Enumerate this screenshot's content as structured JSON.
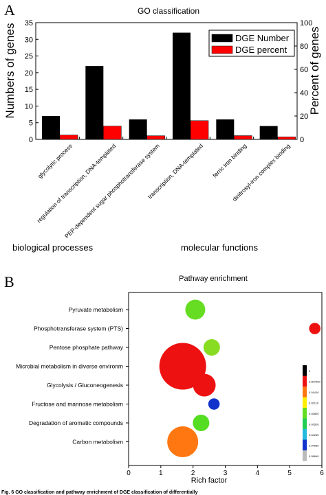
{
  "panel_labels": {
    "a": "A",
    "b": "B"
  },
  "chart_data": [
    {
      "type": "bar",
      "title": "GO classification",
      "ylabel": "Numbers of genes",
      "ylabel_right": "Percent of genes",
      "ylim": [
        0,
        35
      ],
      "ylim_right": [
        0,
        100
      ],
      "yticks": [
        "0",
        "5",
        "10",
        "15",
        "20",
        "25",
        "30",
        "35"
      ],
      "yticks_right": [
        "0",
        "20",
        "40",
        "60",
        "80",
        "100"
      ],
      "categories": [
        "glycolytic process",
        "regulation of transcription, DNA-templated",
        "PEP-dependent sugar phosphotransferase system",
        "transcription, DNA-templated",
        "ferric iron binding",
        "dinitrosyl-iron complex binding"
      ],
      "series": [
        {
          "name": "DGE Number",
          "axis": "left",
          "color": "#000000",
          "values": [
            7,
            22,
            6,
            32,
            6,
            4
          ]
        },
        {
          "name": "DGE percent",
          "axis": "right",
          "color": "#ff0000",
          "values": [
            3.7,
            11.4,
            3.1,
            16.0,
            3.2,
            2.1
          ]
        }
      ],
      "group_labels": [
        "biological processes",
        "molecular functions"
      ],
      "legend": "top-right",
      "grid": false
    },
    {
      "type": "scatter",
      "title": "Pathway enrichment",
      "xlabel": "Rich factor",
      "xlim": [
        0,
        6
      ],
      "xticks": [
        "0",
        "1",
        "2",
        "3",
        "4",
        "5",
        "6"
      ],
      "categories": [
        "Pyruvate metabolism",
        "Phosphotransferase system (PTS)",
        "Pentose phosphate pathway",
        "Microbial metabolism in diverse environm",
        "Glycolysis / Gluconeogenesis",
        "Fructose and mannose metabolism",
        "Degradation of aromatic compounds",
        "Carbon metabolism"
      ],
      "points": [
        {
          "category": "Pyruvate metabolism",
          "rich_factor": 2.07,
          "size": 3,
          "color": "#66dd22"
        },
        {
          "category": "Phosphotransferase system (PTS)",
          "rich_factor": 5.78,
          "size": 1,
          "color": "#ee1111"
        },
        {
          "category": "Pentose phosphate pathway",
          "rich_factor": 2.58,
          "size": 2,
          "color": "#88dd22"
        },
        {
          "category": "Microbial metabolism in diverse environm",
          "rich_factor": 1.68,
          "size": 20,
          "color": "#ee1111"
        },
        {
          "category": "Glycolysis / Gluconeogenesis",
          "rich_factor": 2.35,
          "size": 4,
          "color": "#ee1111"
        },
        {
          "category": "Fructose and mannose metabolism",
          "rich_factor": 2.65,
          "size": 1,
          "color": "#1133cc"
        },
        {
          "category": "Degradation of aromatic compounds",
          "rich_factor": 2.25,
          "size": 2,
          "color": "#55dd22"
        },
        {
          "category": "Carbon metabolism",
          "rich_factor": 1.68,
          "size": 8,
          "color": "#ff7711"
        }
      ],
      "colorbar": {
        "labels": [
          "0",
          "0.007200",
          "0.01410",
          "0.02110",
          "0.02820",
          "0.03520",
          "0.04230",
          "0.04930",
          "0.05640"
        ],
        "colors": [
          "#000000",
          "#ee1111",
          "#ff7711",
          "#ffee00",
          "#66dd22",
          "#22cc55",
          "#22bbdd",
          "#1133cc",
          "#bbbbbb"
        ]
      }
    }
  ],
  "caption": "Fig. 6 GO classification and pathway enrichment of DGE classification of differentially"
}
